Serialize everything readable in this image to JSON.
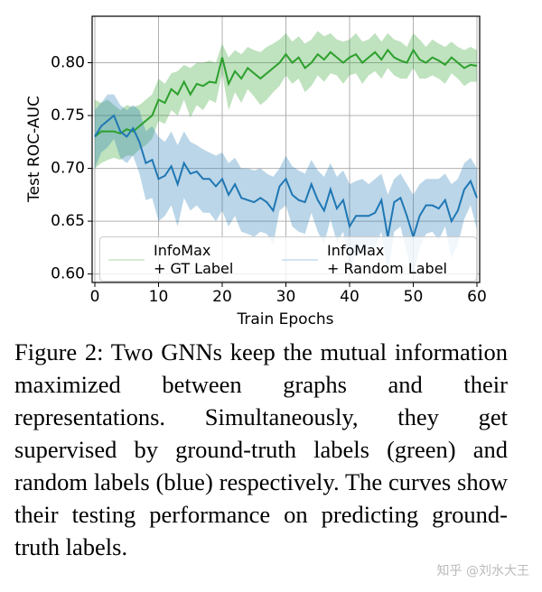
{
  "chart_data": {
    "type": "line",
    "xlabel": "Train Epochs",
    "ylabel": "Test ROC-AUC",
    "x": [
      0,
      1,
      2,
      3,
      4,
      5,
      6,
      7,
      8,
      9,
      10,
      11,
      12,
      13,
      14,
      15,
      16,
      17,
      18,
      19,
      20,
      21,
      22,
      23,
      24,
      25,
      26,
      27,
      28,
      29,
      30,
      31,
      32,
      33,
      34,
      35,
      36,
      37,
      38,
      39,
      40,
      41,
      42,
      43,
      44,
      45,
      46,
      47,
      48,
      49,
      50,
      51,
      52,
      53,
      54,
      55,
      56,
      57,
      58,
      59,
      60
    ],
    "series": [
      {
        "name": "InfoMax\n+ GT Label",
        "color": "#2ca02c",
        "values": [
          0.73,
          0.735,
          0.735,
          0.735,
          0.733,
          0.737,
          0.735,
          0.74,
          0.745,
          0.75,
          0.765,
          0.762,
          0.775,
          0.77,
          0.782,
          0.77,
          0.78,
          0.778,
          0.782,
          0.781,
          0.805,
          0.78,
          0.792,
          0.785,
          0.795,
          0.79,
          0.785,
          0.79,
          0.795,
          0.8,
          0.808,
          0.8,
          0.805,
          0.795,
          0.8,
          0.808,
          0.803,
          0.81,
          0.805,
          0.8,
          0.805,
          0.808,
          0.8,
          0.805,
          0.81,
          0.803,
          0.812,
          0.805,
          0.802,
          0.8,
          0.812,
          0.803,
          0.8,
          0.805,
          0.802,
          0.798,
          0.805,
          0.8,
          0.795,
          0.798,
          0.797
        ],
        "upper": [
          0.765,
          0.762,
          0.765,
          0.76,
          0.755,
          0.76,
          0.758,
          0.76,
          0.765,
          0.77,
          0.785,
          0.78,
          0.79,
          0.792,
          0.798,
          0.795,
          0.8,
          0.8,
          0.802,
          0.8,
          0.818,
          0.805,
          0.812,
          0.808,
          0.815,
          0.812,
          0.81,
          0.815,
          0.818,
          0.822,
          0.828,
          0.82,
          0.825,
          0.818,
          0.822,
          0.83,
          0.825,
          0.828,
          0.822,
          0.82,
          0.822,
          0.828,
          0.82,
          0.822,
          0.828,
          0.82,
          0.828,
          0.822,
          0.82,
          0.815,
          0.828,
          0.822,
          0.815,
          0.822,
          0.818,
          0.815,
          0.82,
          0.815,
          0.812,
          0.815,
          0.812
        ],
        "lower": [
          0.7,
          0.705,
          0.708,
          0.71,
          0.708,
          0.712,
          0.712,
          0.718,
          0.722,
          0.728,
          0.745,
          0.742,
          0.755,
          0.75,
          0.765,
          0.748,
          0.76,
          0.755,
          0.765,
          0.762,
          0.79,
          0.755,
          0.772,
          0.762,
          0.775,
          0.768,
          0.76,
          0.765,
          0.772,
          0.778,
          0.788,
          0.78,
          0.785,
          0.772,
          0.778,
          0.788,
          0.782,
          0.79,
          0.788,
          0.78,
          0.788,
          0.79,
          0.78,
          0.788,
          0.792,
          0.785,
          0.795,
          0.788,
          0.785,
          0.785,
          0.795,
          0.785,
          0.785,
          0.788,
          0.785,
          0.78,
          0.79,
          0.785,
          0.778,
          0.782,
          0.782
        ]
      },
      {
        "name": "InfoMax\n+ Random Label",
        "color": "#1f77b4",
        "values": [
          0.73,
          0.74,
          0.745,
          0.75,
          0.735,
          0.73,
          0.738,
          0.725,
          0.705,
          0.708,
          0.69,
          0.693,
          0.702,
          0.685,
          0.705,
          0.695,
          0.697,
          0.69,
          0.69,
          0.683,
          0.69,
          0.675,
          0.685,
          0.672,
          0.67,
          0.668,
          0.672,
          0.668,
          0.66,
          0.683,
          0.69,
          0.675,
          0.67,
          0.668,
          0.685,
          0.67,
          0.66,
          0.68,
          0.662,
          0.67,
          0.645,
          0.655,
          0.655,
          0.655,
          0.658,
          0.67,
          0.635,
          0.668,
          0.672,
          0.655,
          0.635,
          0.655,
          0.665,
          0.665,
          0.662,
          0.67,
          0.65,
          0.66,
          0.68,
          0.688,
          0.672
        ],
        "upper": [
          0.755,
          0.762,
          0.77,
          0.77,
          0.76,
          0.755,
          0.76,
          0.755,
          0.735,
          0.74,
          0.73,
          0.725,
          0.735,
          0.722,
          0.735,
          0.725,
          0.722,
          0.718,
          0.715,
          0.712,
          0.715,
          0.705,
          0.71,
          0.7,
          0.7,
          0.698,
          0.7,
          0.695,
          0.692,
          0.7,
          0.712,
          0.702,
          0.698,
          0.695,
          0.708,
          0.698,
          0.692,
          0.705,
          0.692,
          0.698,
          0.685,
          0.688,
          0.69,
          0.685,
          0.69,
          0.695,
          0.675,
          0.69,
          0.695,
          0.685,
          0.675,
          0.685,
          0.69,
          0.69,
          0.69,
          0.695,
          0.685,
          0.69,
          0.705,
          0.71,
          0.7
        ],
        "lower": [
          0.7,
          0.715,
          0.72,
          0.728,
          0.71,
          0.705,
          0.712,
          0.695,
          0.67,
          0.672,
          0.65,
          0.655,
          0.665,
          0.645,
          0.672,
          0.66,
          0.665,
          0.658,
          0.658,
          0.65,
          0.66,
          0.645,
          0.655,
          0.64,
          0.638,
          0.635,
          0.64,
          0.638,
          0.628,
          0.66,
          0.665,
          0.645,
          0.64,
          0.638,
          0.658,
          0.64,
          0.628,
          0.652,
          0.63,
          0.64,
          0.605,
          0.62,
          0.618,
          0.622,
          0.625,
          0.64,
          0.598,
          0.64,
          0.645,
          0.62,
          0.598,
          0.625,
          0.638,
          0.64,
          0.632,
          0.645,
          0.615,
          0.628,
          0.652,
          0.665,
          0.642
        ]
      }
    ],
    "xlim": [
      0,
      60
    ],
    "xticks": [
      0,
      10,
      20,
      30,
      40,
      50,
      60
    ],
    "ylim": [
      0.592,
      0.844
    ],
    "yticks": [
      {
        "value": 0.6,
        "label": "0.60"
      },
      {
        "value": 0.65,
        "label": "0.65"
      },
      {
        "value": 0.7,
        "label": "0.70"
      },
      {
        "value": 0.75,
        "label": "0.75"
      },
      {
        "value": 0.8,
        "label": "0.80"
      }
    ],
    "grid": true,
    "legend": "lower center"
  },
  "caption": "Figure 2: Two GNNs keep the mutual information maximized between graphs and their representations. Simultaneously, they get supervised by ground-truth labels (green) and random labels (blue) respectively. The curves show their testing performance on predicting ground-truth labels.",
  "watermark": "知乎 @刘水大王"
}
